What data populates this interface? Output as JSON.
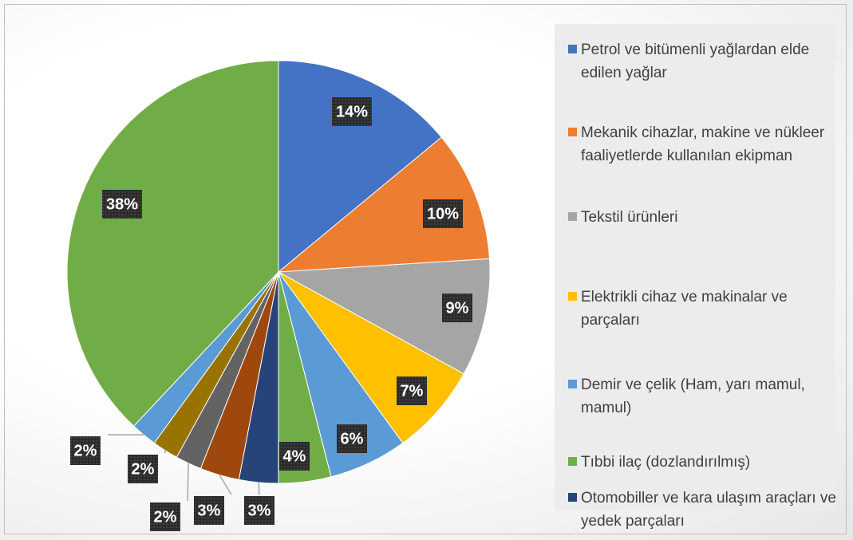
{
  "chart_data": {
    "type": "pie",
    "categories": [
      "Petrol ve bitümenli yağlardan elde edilen yağlar",
      "Mekanik cihazlar, makine ve nükleer faaliyetlerde kullanılan ekipman",
      "Tekstil ürünleri",
      "Elektrikli cihaz ve makinalar ve parçaları",
      "Demir ve çelik (Ham, yarı mamul, mamul)",
      "Tıbbi ilaç (dozlandırılmış)",
      "Otomobiller ve kara ulaşım araçları ve yedek parçaları",
      null,
      null,
      null,
      null,
      null
    ],
    "values": [
      14,
      10,
      9,
      7,
      6,
      4,
      3,
      3,
      2,
      2,
      2,
      38
    ],
    "value_labels": [
      "14%",
      "10%",
      "9%",
      "7%",
      "6%",
      "4%",
      "3%",
      "3%",
      "2%",
      "2%",
      "2%",
      "38%"
    ],
    "colors": [
      "#4472c4",
      "#ed7d31",
      "#a5a5a5",
      "#ffc000",
      "#5b9bd5",
      "#70ad47",
      "#264478",
      "#9e480e",
      "#636363",
      "#997300",
      "#5b9bd5",
      "#70ad47"
    ]
  }
}
